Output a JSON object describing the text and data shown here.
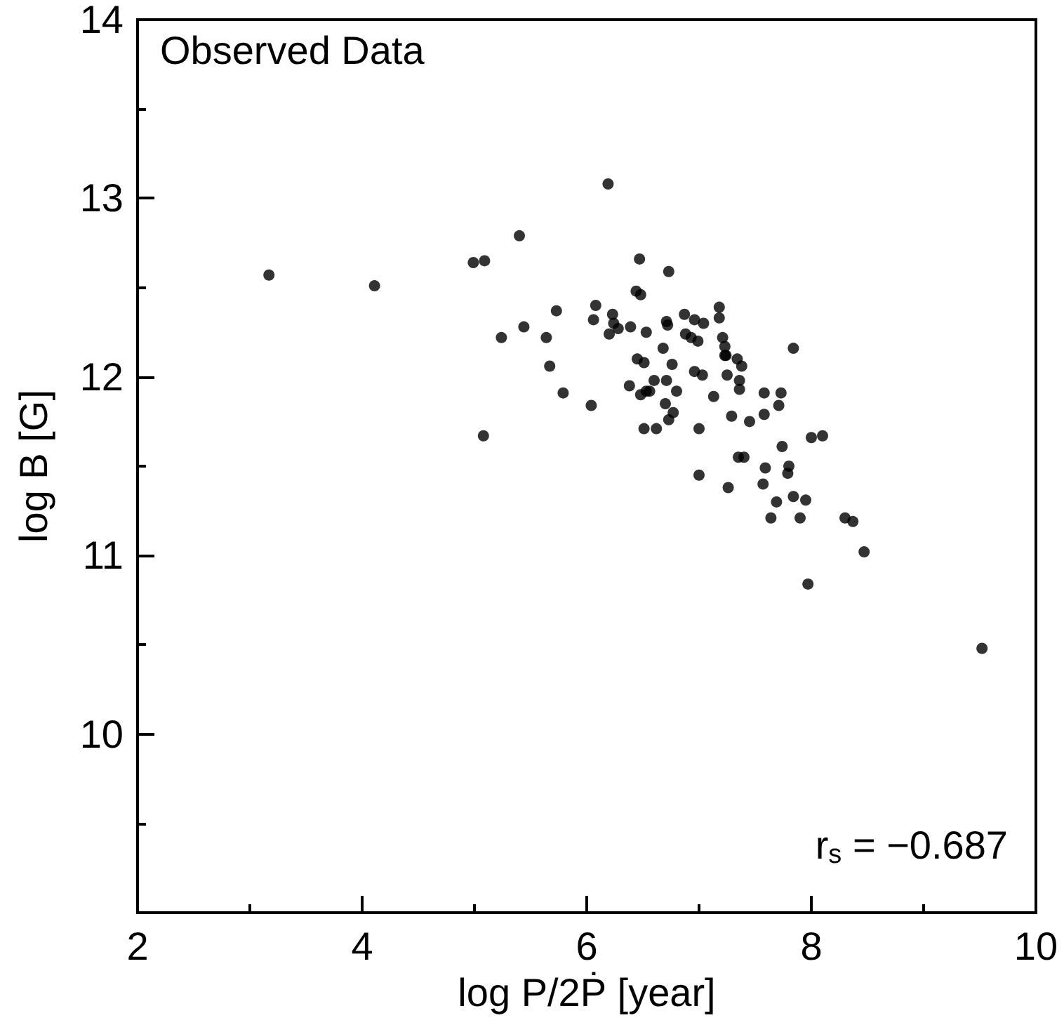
{
  "chart_data": {
    "type": "scatter",
    "xlabel": "log P/2Ṗ [year]",
    "ylabel": "log B [G]",
    "annotations": [
      "Observed Data",
      "r$_{s}$ = −0.687"
    ],
    "xlim": [
      2,
      10
    ],
    "xticks": [
      2,
      4,
      6,
      8,
      10
    ],
    "ylim": [
      9,
      14
    ],
    "yticks": [
      10,
      11,
      12,
      13,
      14
    ],
    "marker": "circle",
    "series": [
      {
        "color": "#000000",
        "x": [
          6.47,
          6.73,
          6.44,
          6.48,
          6.08,
          6.06,
          6.23,
          6.24,
          6.28,
          6.2,
          6.39,
          6.53,
          6.71,
          6.72,
          6.87,
          6.96,
          7.04,
          7.18,
          7.18,
          6.88,
          6.93,
          6.99,
          7.21,
          7.23,
          7.23,
          7.24,
          6.68,
          7.84,
          6.45,
          6.51,
          6.76,
          7.34,
          7.38,
          6.96,
          7.03,
          7.25,
          6.6,
          6.71,
          7.36,
          7.36,
          6.38,
          6.48,
          6.53,
          6.56,
          6.8,
          5.79,
          7.13,
          7.58,
          7.73,
          6.04,
          6.7,
          6.77,
          6.73,
          7.71,
          7.29,
          7.58,
          7.45,
          6.51,
          6.62,
          7.0,
          7.74,
          8.0,
          8.1,
          7.35,
          7.4,
          7.59,
          7.8,
          7.79,
          7.0,
          7.57,
          7.26,
          7.69,
          7.84,
          7.95,
          7.64,
          7.9,
          8.3,
          8.37,
          8.47,
          7.97,
          9.52,
          6.19,
          3.17,
          4.11,
          4.99,
          5.09,
          5.4,
          5.73,
          5.44,
          5.24,
          5.64,
          5.67,
          5.08
        ],
        "values": [
          12.66,
          12.59,
          12.48,
          12.46,
          12.4,
          12.32,
          12.35,
          12.3,
          12.27,
          12.24,
          12.28,
          12.25,
          12.31,
          12.29,
          12.35,
          12.32,
          12.3,
          12.39,
          12.33,
          12.24,
          12.22,
          12.2,
          12.22,
          12.17,
          12.12,
          12.12,
          12.16,
          12.16,
          12.1,
          12.08,
          12.07,
          12.1,
          12.06,
          12.03,
          12.01,
          12.01,
          11.98,
          11.98,
          11.98,
          11.93,
          11.95,
          11.9,
          11.92,
          11.92,
          11.92,
          11.91,
          11.89,
          11.91,
          11.91,
          11.84,
          11.85,
          11.8,
          11.76,
          11.84,
          11.78,
          11.79,
          11.75,
          11.71,
          11.71,
          11.71,
          11.61,
          11.66,
          11.67,
          11.55,
          11.55,
          11.49,
          11.5,
          11.46,
          11.45,
          11.4,
          11.38,
          11.3,
          11.33,
          11.31,
          11.21,
          11.21,
          11.21,
          11.19,
          11.02,
          10.84,
          10.48,
          13.08,
          12.57,
          12.51,
          12.64,
          12.65,
          12.79,
          12.37,
          12.28,
          12.22,
          12.22,
          12.06,
          11.67
        ]
      }
    ]
  }
}
